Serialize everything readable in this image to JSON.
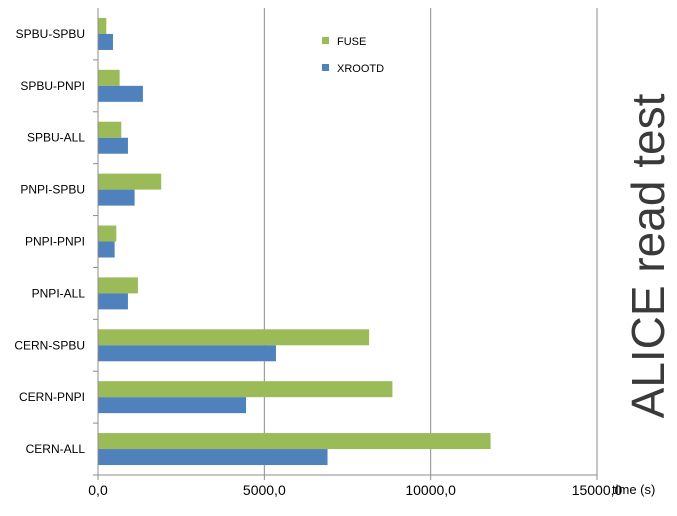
{
  "chart_data": {
    "type": "bar",
    "orientation": "horizontal",
    "title": "ALICE read test",
    "xlabel": "time (s)",
    "ylabel": "",
    "xlim": [
      0,
      15000
    ],
    "xticks": [
      0,
      5000,
      10000,
      15000
    ],
    "xtick_labels": [
      "0,0",
      "5000,0",
      "10000,0",
      "15000,0"
    ],
    "grid": "vertical major gridlines",
    "legend_position": "top-right",
    "categories": [
      "SPBU-SPBU",
      "SPBU-PNPI",
      "SPBU-ALL",
      "PNPI-SPBU",
      "PNPI-PNPI",
      "PNPI-ALL",
      "CERN-SPBU",
      "CERN-PNPI",
      "CERN-ALL"
    ],
    "series": [
      {
        "name": "FUSE",
        "color": "#9bbb59",
        "values": [
          250,
          650,
          700,
          1900,
          550,
          1200,
          8150,
          8850,
          11800
        ]
      },
      {
        "name": "XROOTD",
        "color": "#4f81bd",
        "values": [
          450,
          1350,
          900,
          1100,
          500,
          900,
          5350,
          4450,
          6900
        ]
      }
    ]
  }
}
